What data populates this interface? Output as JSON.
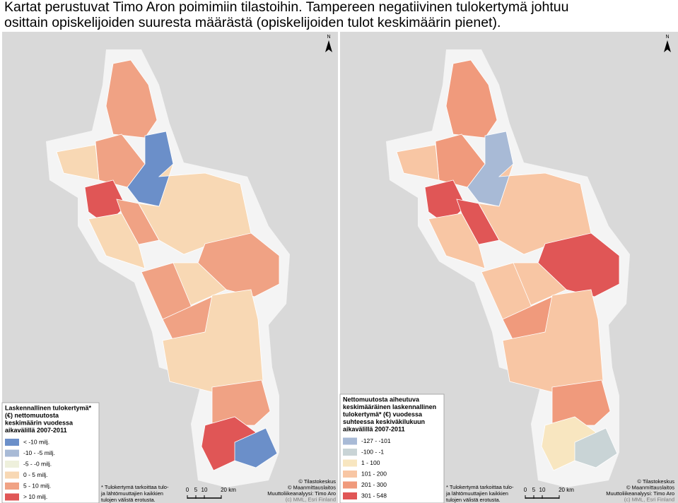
{
  "caption_lines": [
    "Kartat perustuvat Timo Aron poimimiin tilastoihin. Tampereen negatiivinen tulokertymä johtuu",
    "osittain opiskelijoiden suuresta määrästä (opiskelijoiden tulot keskimäärin pienet)."
  ],
  "maps": [
    {
      "north": "N",
      "legend": {
        "title_lines": [
          "Laskennallinen tulokertymä*",
          "(€) nettomuutosta",
          "keskimäärin vuodessa",
          "aikavälillä 2007-2011"
        ],
        "items": [
          {
            "label": "< -10 milj.",
            "color": "#6b8fc9"
          },
          {
            "label": "-10 - -5 milj.",
            "color": "#a8bad6"
          },
          {
            "label": "-5 - -0 milj.",
            "color": "#eef0dc"
          },
          {
            "label": "0 - 5 milj.",
            "color": "#f8d8b4"
          },
          {
            "label": "5 - 10 milj.",
            "color": "#f0a284"
          },
          {
            "label": "> 10 milj.",
            "color": "#e05656"
          }
        ]
      },
      "footnote_lines": [
        "* Tulokertymä tarkoittaa tulo-",
        "ja lähtömuuttajien kaikkien",
        "tulojen välistä erotusta."
      ],
      "scale": [
        "0",
        "5",
        "10",
        "20 km"
      ],
      "credits": [
        "© Tilastokeskus",
        "© Maanmittauslaitos",
        "Muuttoliikeanalyysi: Timo Aro",
        "(c) MML, Esri Finland"
      ]
    },
    {
      "north": "N",
      "legend": {
        "title_lines": [
          "Nettomuutosta aiheutuva",
          "keskimääräinen laskennallinen",
          "tulokertymä* (€) vuodessa",
          "suhteessa keskiväkilukuun",
          "aikavälillä 2007-2011"
        ],
        "items": [
          {
            "label": "-127 - -101",
            "color": "#a8bad6"
          },
          {
            "label": "-100 - -1",
            "color": "#c9d4d6"
          },
          {
            "label": "1 - 100",
            "color": "#f8e6c0"
          },
          {
            "label": "101 - 200",
            "color": "#f8c6a4"
          },
          {
            "label": "201 - 300",
            "color": "#f09a7c"
          },
          {
            "label": "301 - 548",
            "color": "#e05656"
          }
        ]
      },
      "footnote_lines": [
        "* Tulokertymä tarkoittaa tulo-",
        "ja lähtömuuttajien kaikkien",
        "tulojen välistä erotusta."
      ],
      "scale": [
        "0",
        "5",
        "10",
        "20 km"
      ],
      "credits": [
        "© Tilastokeskus",
        "© Maanmittauslaitos",
        "Muuttoliikeanalyysi: Timo Aro",
        "(c) MML, Esri Finland"
      ]
    }
  ]
}
